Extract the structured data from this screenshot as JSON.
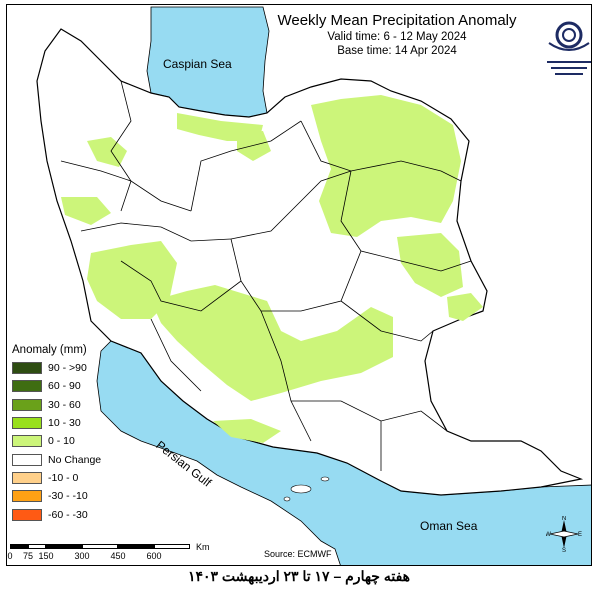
{
  "title": {
    "main": "Weekly Mean Precipitation Anomaly",
    "valid_time": "Valid time: 6 - 12 May 2024",
    "base_time": "Base time: 14 Apr 2024"
  },
  "water_labels": {
    "caspian": "Caspian Sea",
    "persian_gulf": "Persian Gulf",
    "oman_sea": "Oman Sea"
  },
  "legend": {
    "title": "Anomaly (mm)",
    "items": [
      {
        "label": "90 - >90",
        "color": "#2e4d12"
      },
      {
        "label": "60 - 90",
        "color": "#3f6d12"
      },
      {
        "label": "30 - 60",
        "color": "#6aa11a"
      },
      {
        "label": "10 - 30",
        "color": "#99e01c"
      },
      {
        "label": "0 - 10",
        "color": "#ccf57a"
      },
      {
        "label": "No Change",
        "color": "#ffffff"
      },
      {
        "label": "-10 - 0",
        "color": "#ffd08a"
      },
      {
        "label": "-30 - -10",
        "color": "#ffa114"
      },
      {
        "label": "-60 - -30",
        "color": "#ff5a14"
      }
    ]
  },
  "scale_bar": {
    "ticks": [
      "0",
      "75",
      "150",
      "300",
      "450",
      "600"
    ],
    "unit": "Km"
  },
  "source": "Source: ECMWF",
  "caption": "هفته چهارم – ۱۷ تا ۲۳ اردیبهشت ۱۴۰۳",
  "compass": {
    "n": "N",
    "s": "S",
    "e": "E",
    "w": "W"
  },
  "colors": {
    "sea": "#97dbf2",
    "positive_anomaly": "#ccf57a",
    "land": "#ffffff",
    "border": "#000000"
  }
}
